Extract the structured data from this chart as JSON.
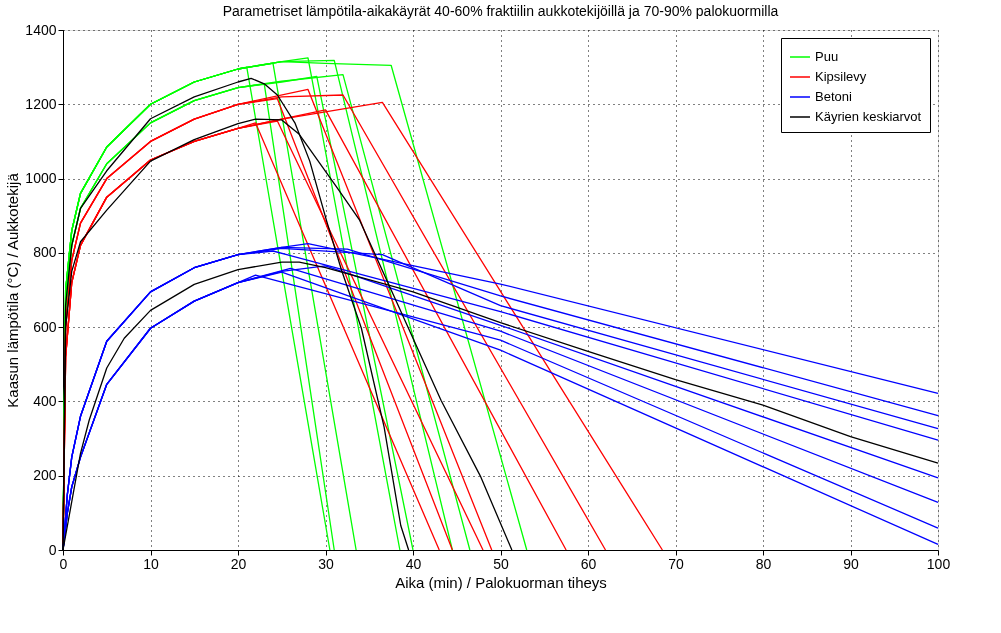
{
  "chart_data": {
    "type": "line",
    "title": "Parametriset lämpötila-aikakäyrät 40-60% fraktiilin aukkotekijöillä ja 70-90% palokuormilla",
    "xlabel": "Aika (min) / Palokuorman tiheys",
    "ylabel": "Kaasun lämpötila (°C) / Aukkotekijä",
    "xlim": [
      0,
      100
    ],
    "ylim": [
      0,
      1400
    ],
    "xticks": [
      0,
      10,
      20,
      30,
      40,
      50,
      60,
      70,
      80,
      90,
      100
    ],
    "yticks": [
      0,
      200,
      400,
      600,
      800,
      1000,
      1200,
      1400
    ],
    "grid": true,
    "legend": "top right",
    "marker": "none",
    "line_style": "solid",
    "series": [
      {
        "name": "Puu",
        "color": "#00ff00",
        "x": [
          0,
          0.3,
          1,
          2,
          5,
          10,
          15,
          20,
          21,
          30.5
        ],
        "values": [
          0,
          700,
          860,
          960,
          1085,
          1200,
          1260,
          1295,
          1300,
          0
        ]
      },
      {
        "color": "#00ff00",
        "x": [
          0,
          0.3,
          1,
          2,
          5,
          10,
          15,
          20,
          23,
          31
        ],
        "values": [
          0,
          650,
          820,
          920,
          1040,
          1150,
          1210,
          1245,
          1255,
          0
        ]
      },
      {
        "color": "#00ff00",
        "x": [
          0,
          0.3,
          1,
          2,
          5,
          10,
          15,
          20,
          24,
          33.5
        ],
        "values": [
          0,
          700,
          860,
          960,
          1085,
          1200,
          1260,
          1295,
          1310,
          0
        ]
      },
      {
        "color": "#00ff00",
        "x": [
          0,
          0.3,
          1,
          2,
          5,
          10,
          15,
          20,
          25,
          28,
          38.5
        ],
        "values": [
          0,
          700,
          860,
          960,
          1085,
          1200,
          1260,
          1295,
          1315,
          1325,
          0
        ]
      },
      {
        "color": "#00ff00",
        "x": [
          0,
          0.3,
          1,
          2,
          5,
          10,
          15,
          20,
          25,
          29,
          40
        ],
        "values": [
          0,
          650,
          820,
          920,
          1040,
          1150,
          1210,
          1245,
          1260,
          1275,
          0
        ]
      },
      {
        "color": "#00ff00",
        "x": [
          0,
          0.3,
          1,
          2,
          5,
          10,
          15,
          20,
          25,
          31,
          44.5
        ],
        "values": [
          0,
          700,
          860,
          960,
          1085,
          1200,
          1260,
          1295,
          1315,
          1318,
          0
        ]
      },
      {
        "color": "#00ff00",
        "x": [
          0,
          0.3,
          1,
          2,
          5,
          10,
          15,
          20,
          25,
          32,
          46.5
        ],
        "values": [
          0,
          650,
          820,
          920,
          1040,
          1150,
          1210,
          1245,
          1262,
          1280,
          0
        ]
      },
      {
        "color": "#00ff00",
        "x": [
          0,
          0.3,
          1,
          2,
          5,
          10,
          15,
          20,
          25,
          30,
          37.5,
          53
        ],
        "values": [
          0,
          700,
          860,
          960,
          1085,
          1200,
          1260,
          1295,
          1315,
          1310,
          1305,
          0
        ]
      },
      {
        "name": "Kipsilevy",
        "color": "#ff0000",
        "x": [
          0,
          0.3,
          1,
          2,
          5,
          10,
          15,
          20,
          22,
          43
        ],
        "values": [
          0,
          520,
          720,
          820,
          950,
          1050,
          1100,
          1135,
          1150,
          0
        ]
      },
      {
        "color": "#ff0000",
        "x": [
          0,
          0.3,
          1,
          2,
          5,
          10,
          15,
          20,
          24.5,
          44.5
        ],
        "values": [
          0,
          600,
          780,
          880,
          1000,
          1100,
          1160,
          1200,
          1215,
          0
        ]
      },
      {
        "color": "#ff0000",
        "x": [
          0,
          0.3,
          1,
          2,
          5,
          10,
          15,
          20,
          24.5,
          48
        ],
        "values": [
          0,
          520,
          720,
          820,
          950,
          1050,
          1100,
          1135,
          1155,
          0
        ]
      },
      {
        "color": "#ff0000",
        "x": [
          0,
          0.3,
          1,
          2,
          5,
          10,
          15,
          20,
          28,
          49
        ],
        "values": [
          0,
          600,
          780,
          880,
          1000,
          1100,
          1160,
          1200,
          1240,
          0
        ]
      },
      {
        "color": "#ff0000",
        "x": [
          0,
          0.3,
          1,
          2,
          5,
          10,
          15,
          20,
          30,
          57.5
        ],
        "values": [
          0,
          520,
          720,
          820,
          950,
          1050,
          1100,
          1135,
          1185,
          0
        ]
      },
      {
        "color": "#ff0000",
        "x": [
          0,
          0.3,
          1,
          2,
          5,
          10,
          15,
          20,
          25,
          32,
          62
        ],
        "values": [
          0,
          600,
          780,
          880,
          1000,
          1100,
          1160,
          1200,
          1220,
          1225,
          0
        ]
      },
      {
        "color": "#ff0000",
        "x": [
          0,
          0.3,
          1,
          2,
          5,
          10,
          15,
          20,
          25,
          36.5,
          68.5
        ],
        "values": [
          0,
          520,
          720,
          820,
          950,
          1050,
          1100,
          1135,
          1160,
          1205,
          0
        ]
      },
      {
        "name": "Betoni",
        "color": "#0000ff",
        "x": [
          0,
          0.5,
          1,
          2,
          5,
          10,
          15,
          20,
          25,
          28,
          50,
          100
        ],
        "values": [
          0,
          150,
          250,
          360,
          562,
          695,
          760,
          795,
          815,
          825,
          716,
          422
        ]
      },
      {
        "color": "#0000ff",
        "x": [
          0,
          0.5,
          1,
          2,
          5,
          10,
          15,
          20,
          25,
          32.5,
          50,
          100
        ],
        "values": [
          0,
          150,
          250,
          360,
          562,
          695,
          760,
          795,
          815,
          810,
          684,
          362
        ]
      },
      {
        "color": "#0000ff",
        "x": [
          0,
          0.5,
          1,
          2,
          5,
          10,
          15,
          20,
          25,
          36.5,
          50,
          100
        ],
        "values": [
          0,
          150,
          250,
          360,
          562,
          695,
          760,
          795,
          812,
          795,
          658,
          327
        ]
      },
      {
        "color": "#0000ff",
        "x": [
          0,
          0.5,
          1,
          2,
          5,
          10,
          15,
          20,
          24,
          50,
          100
        ],
        "values": [
          0,
          150,
          250,
          360,
          562,
          695,
          760,
          795,
          805,
          642,
          296
        ]
      },
      {
        "color": "#0000ff",
        "x": [
          0,
          0.5,
          1,
          2,
          5,
          10,
          15,
          20,
          25,
          30,
          50,
          100
        ],
        "values": [
          0,
          100,
          170,
          250,
          446,
          597,
          670,
          720,
          750,
          765,
          605,
          194
        ]
      },
      {
        "color": "#0000ff",
        "x": [
          0,
          0.5,
          1,
          2,
          5,
          10,
          15,
          20,
          26,
          50,
          100
        ],
        "values": [
          0,
          100,
          170,
          250,
          446,
          597,
          670,
          720,
          758,
          589,
          128
        ]
      },
      {
        "color": "#0000ff",
        "x": [
          0,
          0.5,
          1,
          2,
          5,
          10,
          15,
          20,
          22,
          50,
          100
        ],
        "values": [
          0,
          100,
          170,
          250,
          446,
          597,
          670,
          720,
          740,
          565,
          59
        ]
      },
      {
        "color": "#0000ff",
        "x": [
          0,
          0.5,
          1,
          2,
          5,
          10,
          15,
          20,
          25,
          50,
          100
        ],
        "values": [
          0,
          100,
          170,
          250,
          446,
          597,
          670,
          720,
          748,
          538,
          15
        ]
      },
      {
        "name": "Käyrien keskiarvot",
        "color": "#000000",
        "x": [
          0,
          0.3,
          1,
          2,
          5,
          10,
          15,
          20,
          21.5,
          23,
          24.5,
          26.5,
          28.2,
          30.1,
          31.8,
          34.1,
          36.7,
          38.6,
          39.5
        ],
        "values": [
          0,
          660,
          820,
          920,
          1021,
          1161,
          1220,
          1260,
          1270,
          1255,
          1225,
          1150,
          1047,
          888,
          756,
          597,
          331,
          66,
          0
        ]
      },
      {
        "color": "#000000",
        "x": [
          0,
          0.3,
          1,
          2,
          5,
          10,
          15,
          20,
          22,
          25,
          27,
          31.3,
          33.9,
          37.7,
          43.2,
          47.7,
          51.3
        ],
        "values": [
          0,
          600,
          750,
          830,
          915,
          1047,
          1105,
          1148,
          1160,
          1158,
          1119,
          976,
          888,
          690,
          403,
          199,
          0
        ]
      },
      {
        "color": "#000000",
        "x": [
          0,
          1,
          2,
          3,
          5,
          7,
          10,
          15,
          20,
          25,
          27,
          30,
          40,
          50,
          60,
          70,
          80,
          90,
          100
        ],
        "values": [
          0,
          130,
          260,
          350,
          490,
          570,
          645,
          715,
          755,
          775,
          775,
          760,
          695,
          612,
          535,
          459,
          390,
          305,
          234
        ]
      }
    ]
  }
}
